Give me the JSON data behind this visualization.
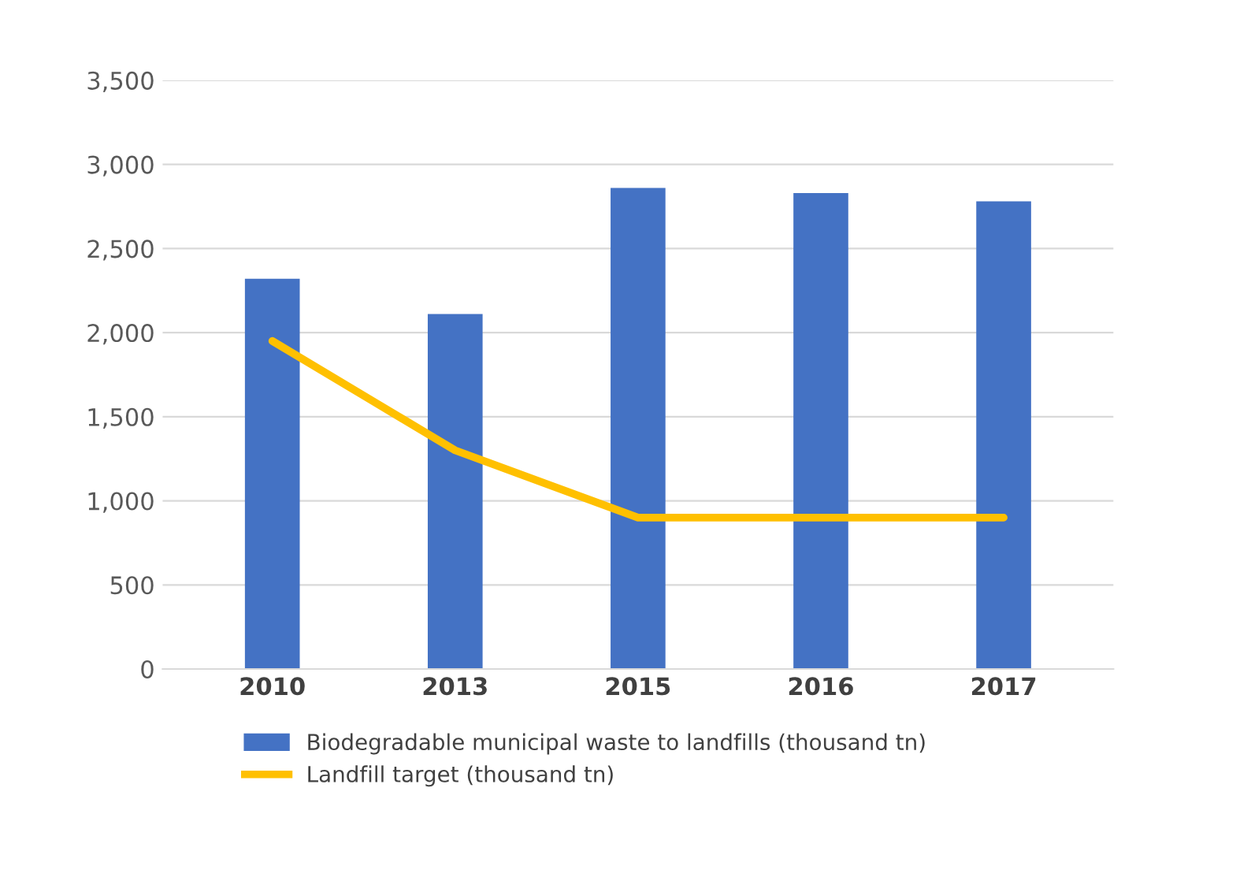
{
  "chart_data": {
    "type": "bar",
    "categories": [
      "2010",
      "2013",
      "2015",
      "2016",
      "2017"
    ],
    "series": [
      {
        "name": "Biodegradable municipal waste to landfills (thousand tn)",
        "color": "#4472c4",
        "values": [
          2320,
          2110,
          2860,
          2830,
          2780
        ]
      },
      {
        "name": "Landfill target (thousand tn)",
        "color": "#ffc000",
        "type": "line",
        "values": [
          1950,
          1300,
          900,
          900,
          900
        ]
      }
    ],
    "ylim": [
      0,
      3500
    ],
    "yticks": [
      {
        "value": 0,
        "label": "0"
      },
      {
        "value": 500,
        "label": "500"
      },
      {
        "value": 1000,
        "label": "1,000"
      },
      {
        "value": 1500,
        "label": "1,500"
      },
      {
        "value": 2000,
        "label": "2,000"
      },
      {
        "value": 2500,
        "label": "2,500"
      },
      {
        "value": 3000,
        "label": "3,000"
      },
      {
        "value": 3500,
        "label": "3,500"
      }
    ],
    "grid": "y",
    "legend": "bottom"
  }
}
